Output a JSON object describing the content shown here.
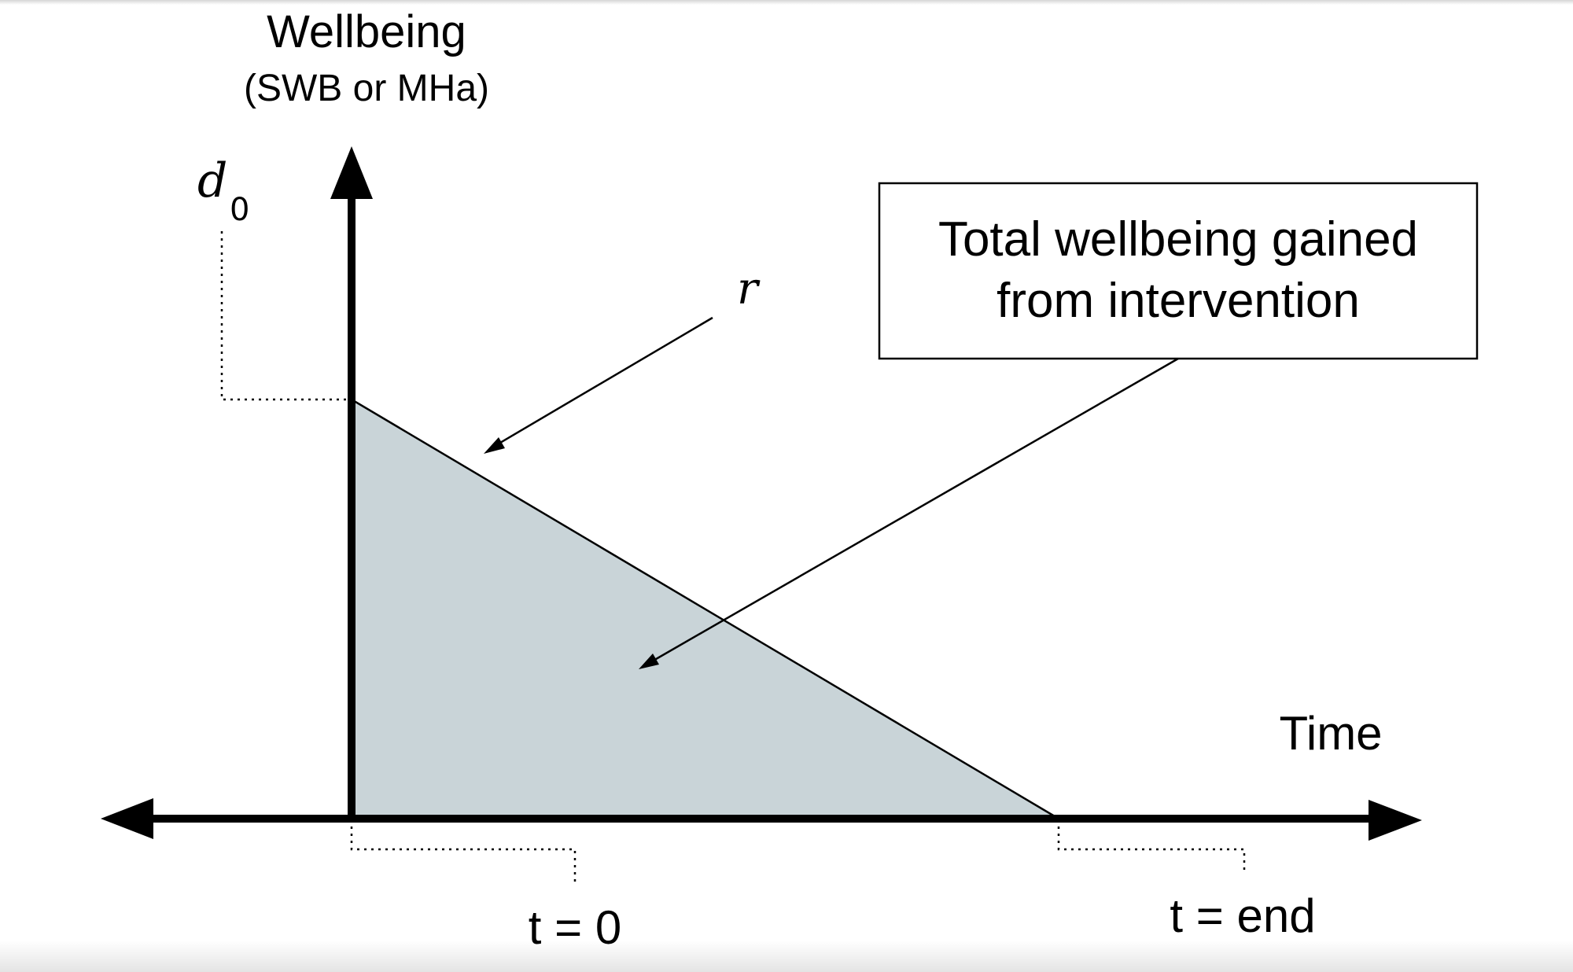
{
  "y_axis": {
    "title": "Wellbeing",
    "subtitle": "(SWB or MHa)"
  },
  "x_axis": {
    "title": "Time"
  },
  "labels": {
    "d_symbol": "d",
    "d_subscript": "0",
    "r_symbol": "r",
    "t_start": "t = 0",
    "t_end": "t = end"
  },
  "callout": {
    "line1": "Total wellbeing gained",
    "line2": "from intervention"
  },
  "colors": {
    "area_fill": "#c9d4d8",
    "ink": "#000000"
  }
}
